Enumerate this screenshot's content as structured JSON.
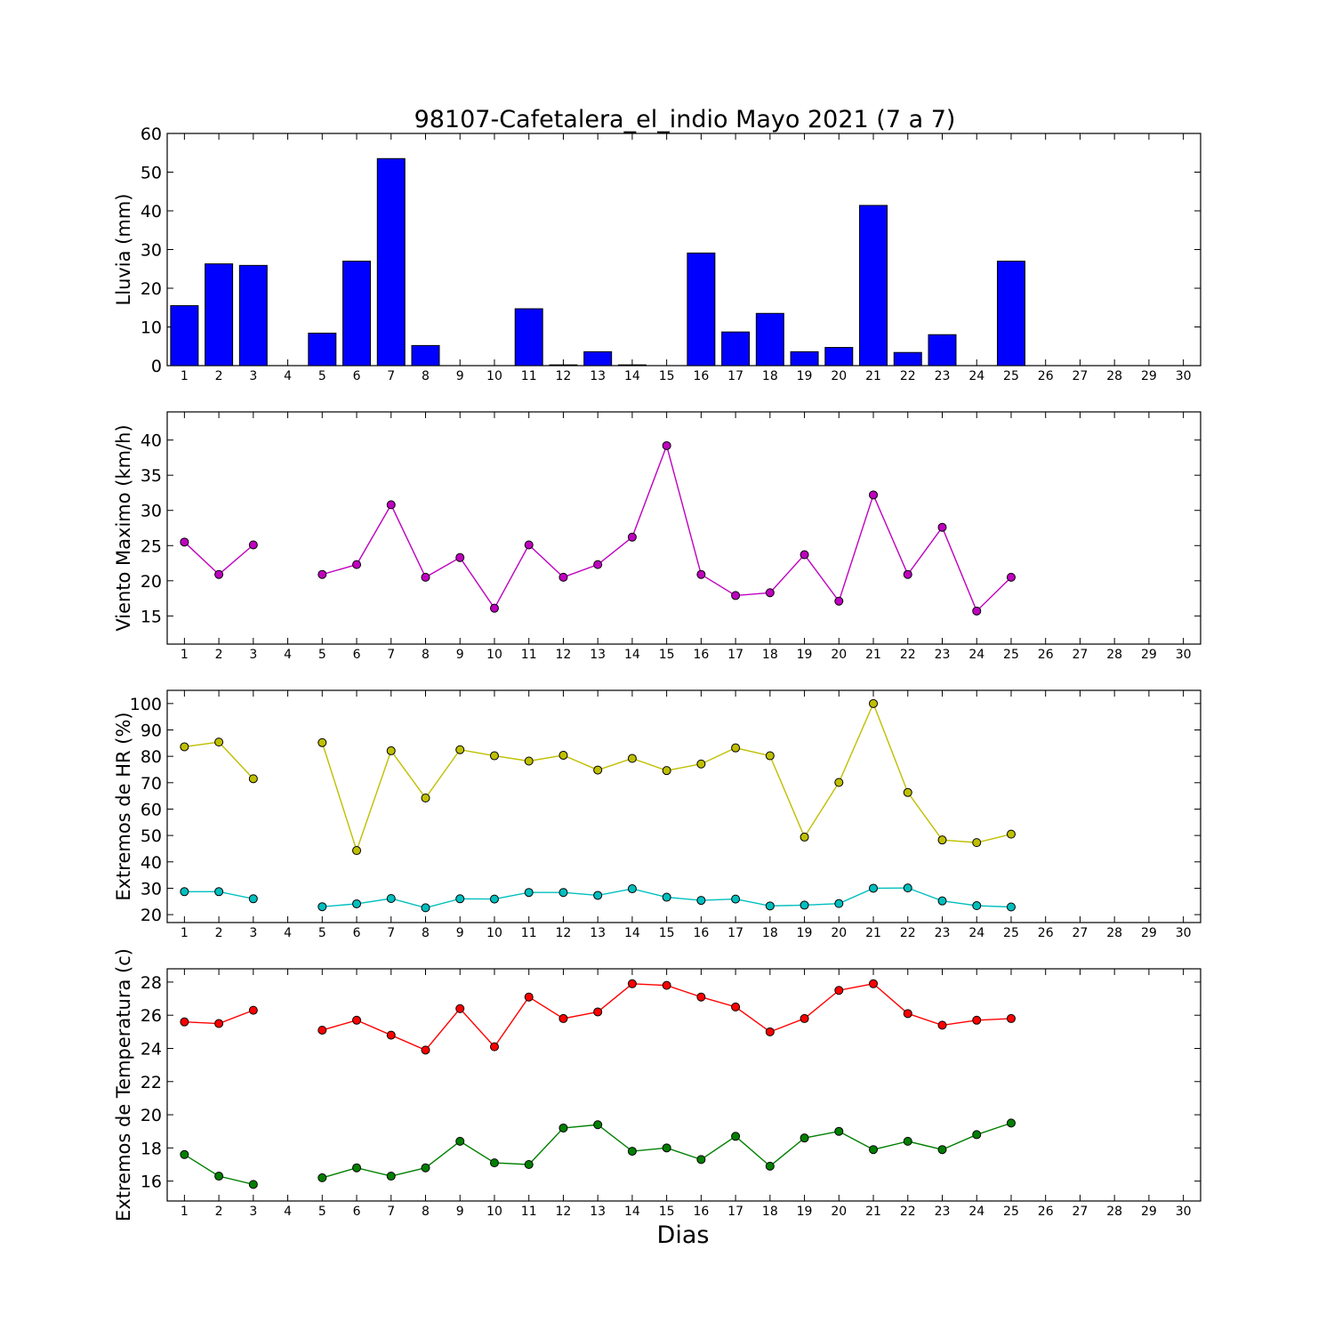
{
  "title": "98107-Cafetalera_el_indio Mayo 2021  (7 a 7)",
  "xlabel": "Dias",
  "chart_data": [
    {
      "type": "bar",
      "ylabel": "Lluvia (mm)",
      "xlim": [
        0.5,
        30.5
      ],
      "ylim": [
        0,
        60
      ],
      "yticks": [
        0,
        10,
        20,
        30,
        40,
        50,
        60
      ],
      "x_ticks": [
        1,
        2,
        3,
        4,
        5,
        6,
        7,
        8,
        9,
        10,
        11,
        12,
        13,
        14,
        15,
        16,
        17,
        18,
        19,
        20,
        21,
        22,
        23,
        24,
        25,
        26,
        27,
        28,
        29,
        30
      ],
      "series": [
        {
          "color": "#0000ff",
          "x": [
            1,
            2,
            3,
            4,
            5,
            6,
            7,
            8,
            9,
            10,
            11,
            12,
            13,
            14,
            15,
            16,
            17,
            18,
            19,
            20,
            21,
            22,
            23,
            24,
            25,
            26,
            27,
            28,
            29,
            30
          ],
          "values": [
            15.5,
            26.3,
            25.9,
            null,
            8.4,
            27.0,
            53.5,
            5.2,
            0,
            0,
            14.7,
            0.2,
            3.6,
            0.2,
            0,
            29.1,
            8.7,
            13.5,
            3.6,
            4.7,
            41.4,
            3.4,
            8.0,
            0,
            27.0,
            null,
            null,
            null,
            null,
            null
          ]
        }
      ]
    },
    {
      "type": "line",
      "ylabel": "Viento Maximo (km/h)",
      "xlim": [
        0.5,
        30.5
      ],
      "ylim": [
        11,
        44
      ],
      "yticks": [
        15,
        20,
        25,
        30,
        35,
        40
      ],
      "x_ticks": [
        1,
        2,
        3,
        4,
        5,
        6,
        7,
        8,
        9,
        10,
        11,
        12,
        13,
        14,
        15,
        16,
        17,
        18,
        19,
        20,
        21,
        22,
        23,
        24,
        25,
        26,
        27,
        28,
        29,
        30
      ],
      "series": [
        {
          "color": "#bf00bf",
          "x": [
            1,
            2,
            3,
            4,
            5,
            6,
            7,
            8,
            9,
            10,
            11,
            12,
            13,
            14,
            15,
            16,
            17,
            18,
            19,
            20,
            21,
            22,
            23,
            24,
            25
          ],
          "values": [
            25.5,
            20.9,
            25.1,
            null,
            20.9,
            22.3,
            30.8,
            20.5,
            23.3,
            16.1,
            25.1,
            20.5,
            22.3,
            26.2,
            39.2,
            20.9,
            17.9,
            18.3,
            23.7,
            17.1,
            32.2,
            20.9,
            27.6,
            15.7,
            20.5
          ]
        }
      ]
    },
    {
      "type": "line",
      "ylabel": "Extremos de HR (%)",
      "xlim": [
        0.5,
        30.5
      ],
      "ylim": [
        17,
        105
      ],
      "yticks": [
        20,
        30,
        40,
        50,
        60,
        70,
        80,
        90,
        100
      ],
      "x_ticks": [
        1,
        2,
        3,
        4,
        5,
        6,
        7,
        8,
        9,
        10,
        11,
        12,
        13,
        14,
        15,
        16,
        17,
        18,
        19,
        20,
        21,
        22,
        23,
        24,
        25,
        26,
        27,
        28,
        29,
        30
      ],
      "series": [
        {
          "color": "#bfbf00",
          "x": [
            1,
            2,
            3,
            4,
            5,
            6,
            7,
            8,
            9,
            10,
            11,
            12,
            13,
            14,
            15,
            16,
            17,
            18,
            19,
            20,
            21,
            22,
            23,
            24,
            25
          ],
          "values": [
            83.6,
            85.4,
            71.5,
            null,
            85.2,
            44.3,
            82.1,
            64.2,
            82.5,
            80.2,
            78.2,
            80.4,
            74.8,
            79.2,
            74.6,
            77.1,
            83.2,
            80.2,
            49.4,
            70.1,
            100,
            66.3,
            48.3,
            47.3,
            50.5
          ]
        },
        {
          "color": "#00bfbf",
          "x": [
            1,
            2,
            3,
            4,
            5,
            6,
            7,
            8,
            9,
            10,
            11,
            12,
            13,
            14,
            15,
            16,
            17,
            18,
            19,
            20,
            21,
            22,
            23,
            24,
            25
          ],
          "values": [
            28.7,
            28.7,
            26.0,
            null,
            23.0,
            24.1,
            26.1,
            22.6,
            26.0,
            25.9,
            28.4,
            28.4,
            27.3,
            29.8,
            26.6,
            25.4,
            25.9,
            23.3,
            23.6,
            24.2,
            30.0,
            30.1,
            25.2,
            23.4,
            22.9
          ]
        }
      ]
    },
    {
      "type": "line",
      "ylabel": "Extremos de Temperatura (c)",
      "xlim": [
        0.5,
        30.5
      ],
      "ylim": [
        14.8,
        28.8
      ],
      "yticks": [
        16,
        18,
        20,
        22,
        24,
        26,
        28
      ],
      "x_ticks": [
        1,
        2,
        3,
        4,
        5,
        6,
        7,
        8,
        9,
        10,
        11,
        12,
        13,
        14,
        15,
        16,
        17,
        18,
        19,
        20,
        21,
        22,
        23,
        24,
        25,
        26,
        27,
        28,
        29,
        30
      ],
      "series": [
        {
          "color": "#ff0000",
          "x": [
            1,
            2,
            3,
            4,
            5,
            6,
            7,
            8,
            9,
            10,
            11,
            12,
            13,
            14,
            15,
            16,
            17,
            18,
            19,
            20,
            21,
            22,
            23,
            24,
            25
          ],
          "values": [
            25.6,
            25.5,
            26.3,
            null,
            25.1,
            25.7,
            24.8,
            23.9,
            26.4,
            24.1,
            27.1,
            25.8,
            26.2,
            27.9,
            27.8,
            27.1,
            26.5,
            25.0,
            25.8,
            27.5,
            27.9,
            26.1,
            25.4,
            25.7,
            25.8
          ]
        },
        {
          "color": "#008000",
          "x": [
            1,
            2,
            3,
            4,
            5,
            6,
            7,
            8,
            9,
            10,
            11,
            12,
            13,
            14,
            15,
            16,
            17,
            18,
            19,
            20,
            21,
            22,
            23,
            24,
            25
          ],
          "values": [
            17.6,
            16.3,
            15.8,
            null,
            16.2,
            16.8,
            16.3,
            16.8,
            18.4,
            17.1,
            17.0,
            19.2,
            19.4,
            17.8,
            18.0,
            17.3,
            18.7,
            16.9,
            18.6,
            19.0,
            17.9,
            18.4,
            17.9,
            18.8,
            19.5
          ]
        }
      ]
    }
  ]
}
